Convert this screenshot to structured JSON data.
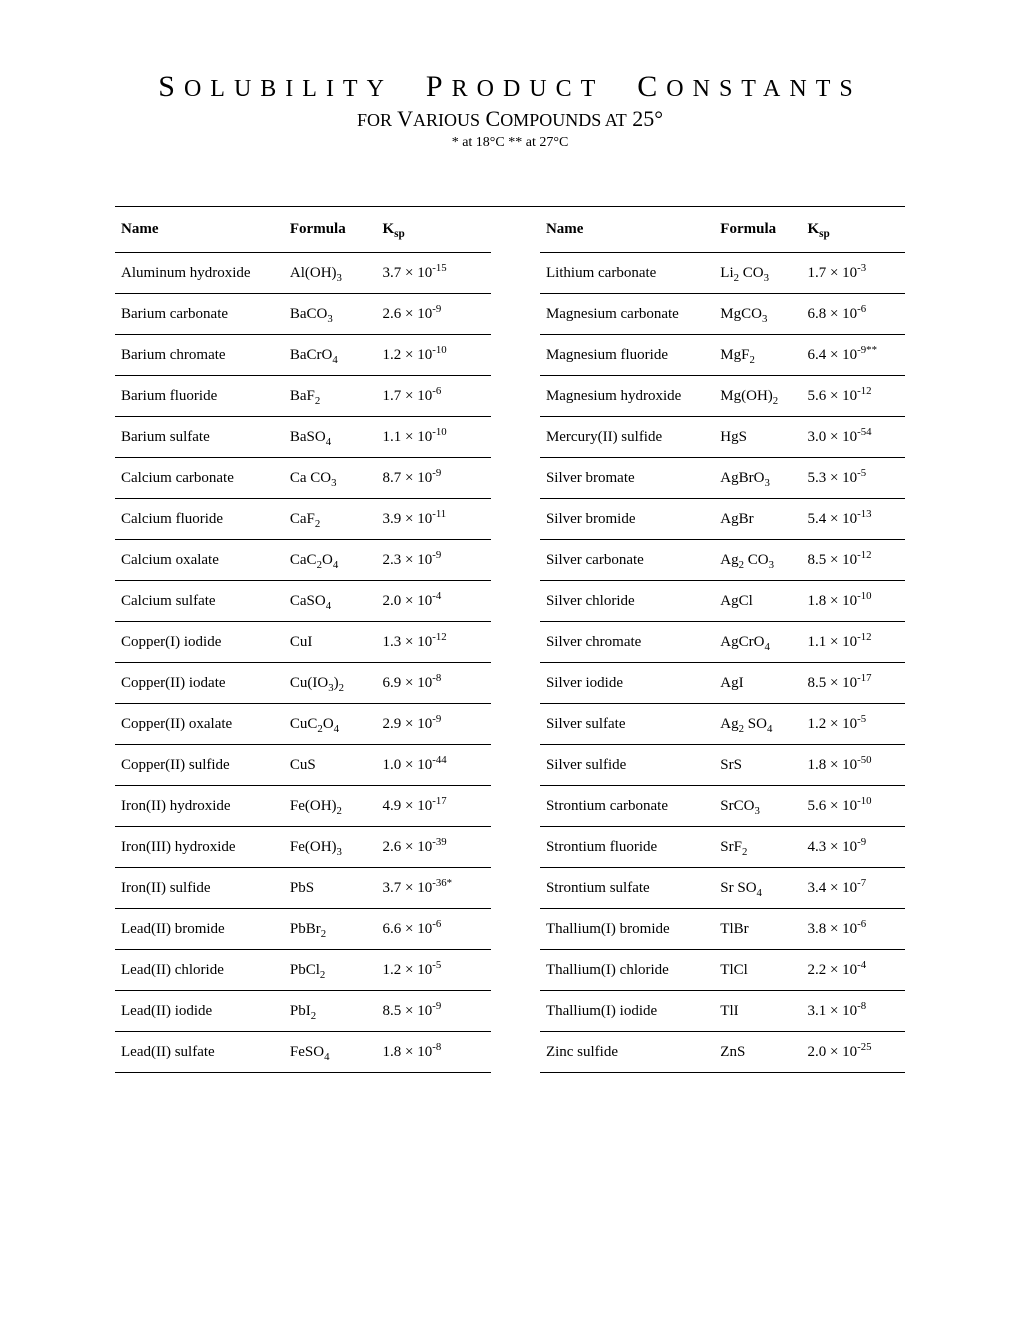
{
  "title": {
    "main_html": "S<span class='sc'>OLUBILITY</span> &nbsp;P<span class='sc'>RODUCT</span> &nbsp;C<span class='sc'>ONSTANTS</span>",
    "sub_html": "<span class='sc'>FOR</span> V<span class='sc'>ARIOUS</span> C<span class='sc'>OMPOUNDS AT</span> 25°",
    "note": "* at 18°C    ** at 27°C"
  },
  "headers": {
    "name": "Name",
    "formula": "Formula",
    "ksp_html": "K<sub>sp</sub>"
  },
  "rows": [
    {
      "n1": "Aluminum hydroxide",
      "f1": "Al(OH)<sub>3</sub>",
      "k1": "3.7 × 10<sup>-15</sup>",
      "n2": "Lithium carbonate",
      "f2": "Li<sub>2</sub> CO<sub>3</sub>",
      "k2": "1.7 × 10<sup>-3</sup>"
    },
    {
      "n1": "Barium carbonate",
      "f1": "BaCO<sub>3</sub>",
      "k1": "2.6 × 10<sup>-9</sup>",
      "n2": "Magnesium carbonate",
      "f2": "MgCO<sub>3</sub>",
      "k2": "6.8 × 10<sup>-6</sup>"
    },
    {
      "n1": "Barium chromate",
      "f1": "BaCrO<sub>4</sub>",
      "k1": "1.2 × 10<sup>-10</sup>",
      "n2": "Magnesium fluoride",
      "f2": "MgF<sub>2</sub>",
      "k2": "6.4 × 10<sup>-9**</sup>"
    },
    {
      "n1": "Barium fluoride",
      "f1": "BaF<sub>2</sub>",
      "k1": "1.7 × 10<sup>-6</sup>",
      "n2": "Magnesium hydroxide",
      "f2": "Mg(OH)<sub>2</sub>",
      "k2": "5.6 × 10<sup>-12</sup>"
    },
    {
      "n1": "Barium sulfate",
      "f1": "BaSO<sub>4</sub>",
      "k1": "1.1 × 10<sup>-10</sup>",
      "n2": "Mercury(II) sulfide",
      "f2": "HgS",
      "k2": "3.0 × 10<sup>-54</sup>"
    },
    {
      "n1": "Calcium carbonate",
      "f1": "Ca CO<sub>3</sub>",
      "k1": "8.7 × 10<sup>-9</sup>",
      "n2": "Silver bromate",
      "f2": "AgBrO<sub>3</sub>",
      "k2": "5.3 × 10<sup>-5</sup>"
    },
    {
      "n1": "Calcium fluoride",
      "f1": "CaF<sub>2</sub>",
      "k1": "3.9 × 10<sup>-11</sup>",
      "n2": "Silver bromide",
      "f2": "AgBr",
      "k2": "5.4 × 10<sup>-13</sup>"
    },
    {
      "n1": "Calcium oxalate",
      "f1": "CaC<sub>2</sub>O<sub>4</sub>",
      "k1": "2.3 × 10<sup>-9</sup>",
      "n2": "Silver carbonate",
      "f2": "Ag<sub>2</sub> CO<sub>3</sub>",
      "k2": "8.5 × 10<sup>-12</sup>"
    },
    {
      "n1": "Calcium sulfate",
      "f1": "CaSO<sub>4</sub>",
      "k1": "2.0 × 10<sup>-4</sup>",
      "n2": "Silver chloride",
      "f2": "AgCl",
      "k2": "1.8 × 10<sup>-10</sup>"
    },
    {
      "n1": "Copper(I) iodide",
      "f1": "CuI",
      "k1": "1.3 × 10<sup>-12</sup>",
      "n2": "Silver chromate",
      "f2": "AgCrO<sub>4</sub>",
      "k2": "1.1 × 10<sup>-12</sup>"
    },
    {
      "n1": "Copper(II) iodate",
      "f1": "Cu(IO<sub>3</sub>)<sub>2</sub>",
      "k1": "6.9 × 10<sup>-8</sup>",
      "n2": "Silver iodide",
      "f2": "AgI",
      "k2": "8.5 × 10<sup>-17</sup>"
    },
    {
      "n1": "Copper(II) oxalate",
      "f1": "CuC<sub>2</sub>O<sub>4</sub>",
      "k1": "2.9 × 10<sup>-9</sup>",
      "n2": "Silver sulfate",
      "f2": "Ag<sub>2</sub> SO<sub>4</sub>",
      "k2": "1.2 × 10<sup>-5</sup>"
    },
    {
      "n1": "Copper(II) sulfide",
      "f1": "CuS",
      "k1": "1.0 × 10<sup>-44</sup>",
      "n2": "Silver sulfide",
      "f2": "SrS",
      "k2": "1.8 × 10<sup>-50</sup>"
    },
    {
      "n1": "Iron(II) hydroxide",
      "f1": "Fe(OH)<sub>2</sub>",
      "k1": "4.9 × 10<sup>-17</sup>",
      "n2": "Strontium carbonate",
      "f2": "SrCO<sub>3</sub>",
      "k2": "5.6 × 10<sup>-10</sup>"
    },
    {
      "n1": "Iron(III) hydroxide",
      "f1": "Fe(OH)<sub>3</sub>",
      "k1": "2.6 × 10<sup>-39</sup>",
      "n2": "Strontium fluoride",
      "f2": "SrF<sub>2</sub>",
      "k2": "4.3 × 10<sup>-9</sup>"
    },
    {
      "n1": "Iron(II) sulfide",
      "f1": "PbS",
      "k1": "3.7 × 10<sup>-36*</sup>",
      "n2": "Strontium sulfate",
      "f2": "Sr SO<sub>4</sub>",
      "k2": "3.4 × 10<sup>-7</sup>"
    },
    {
      "n1": "Lead(II) bromide",
      "f1": "PbBr<sub>2</sub>",
      "k1": "6.6 × 10<sup>-6</sup>",
      "n2": "Thallium(I) bromide",
      "f2": "TlBr",
      "k2": "3.8 × 10<sup>-6</sup>"
    },
    {
      "n1": "Lead(II) chloride",
      "f1": "PbCl<sub>2</sub>",
      "k1": "1.2  × 10<sup>-5</sup>",
      "n2": "Thallium(I) chloride",
      "f2": "TlCl",
      "k2": "2.2 × 10<sup>-4</sup>"
    },
    {
      "n1": "Lead(II) iodide",
      "f1": "PbI<sub>2</sub>",
      "k1": "8.5 × 10<sup>-9</sup>",
      "n2": "Thallium(I) iodide",
      "f2": "TlI",
      "k2": "3.1 × 10<sup>-8</sup>"
    },
    {
      "n1": "Lead(II) sulfate",
      "f1": "FeSO<sub>4</sub>",
      "k1": "1.8 × 10<sup>-8</sup>",
      "n2": "Zinc sulfide",
      "f2": "ZnS",
      "k2": "2.0 × 10<sup>-25</sup>"
    }
  ]
}
